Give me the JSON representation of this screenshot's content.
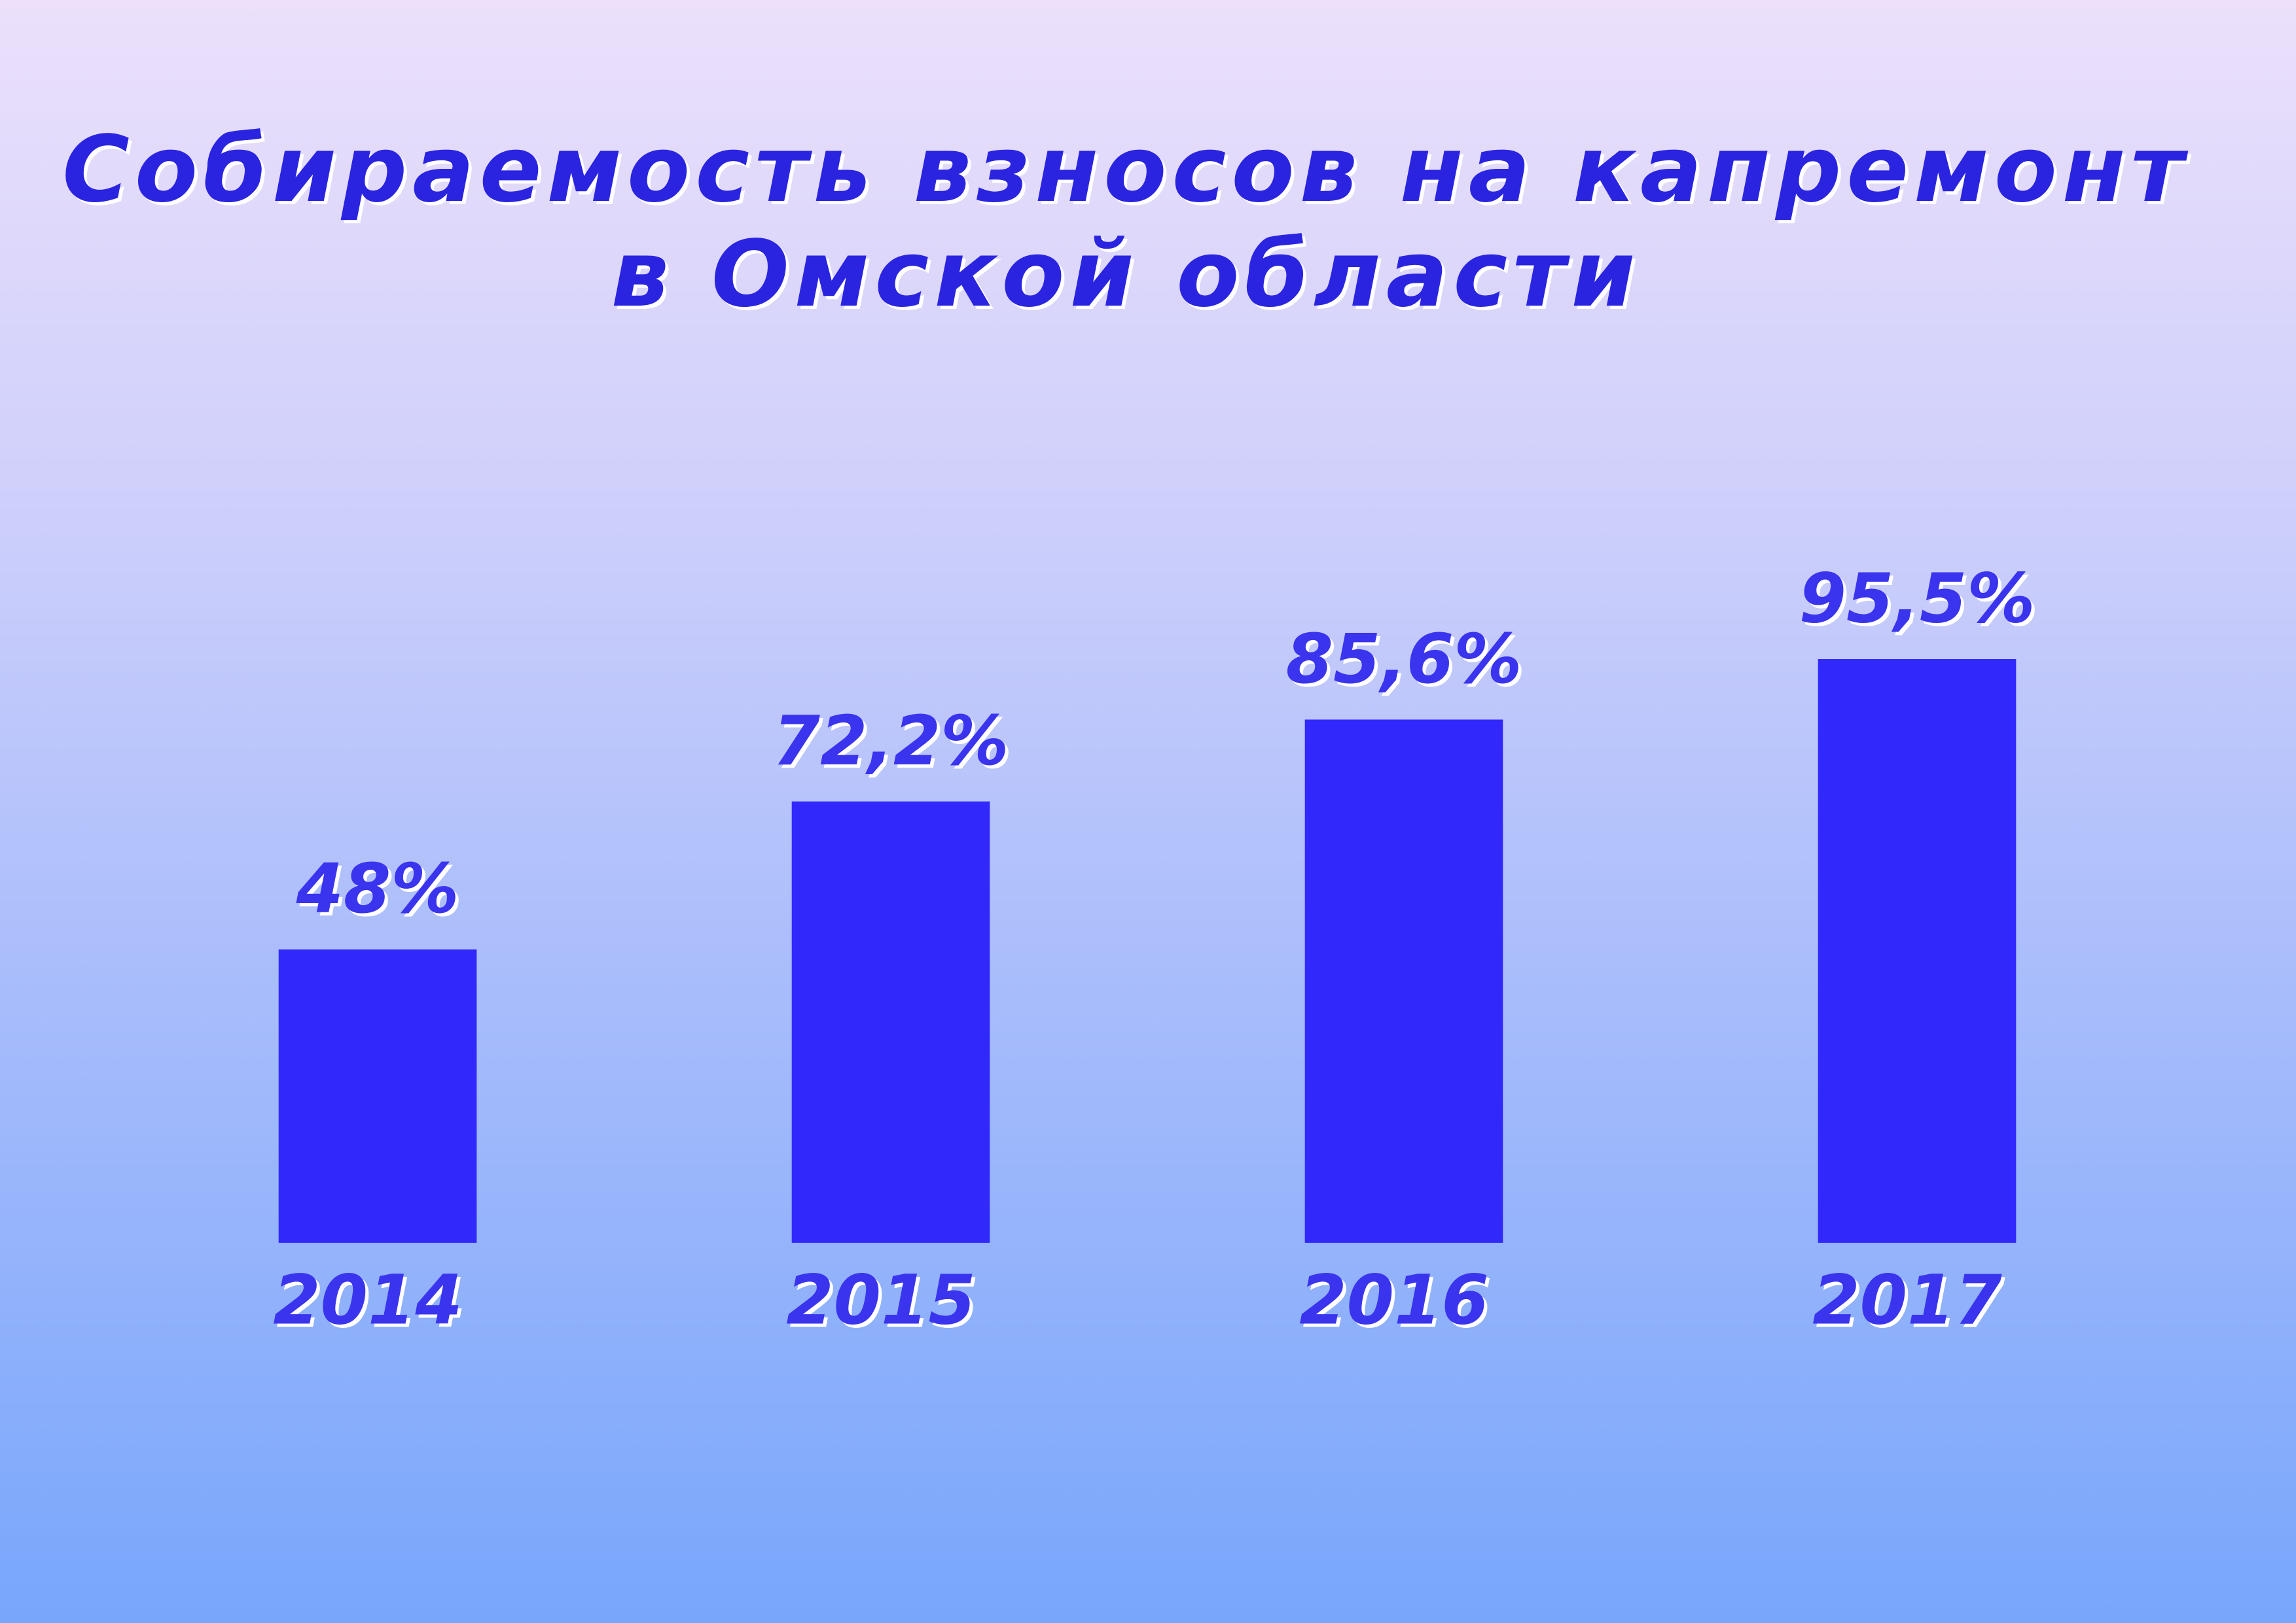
{
  "chart_data": {
    "type": "bar",
    "title": "Собираемость взносов на капремонт\nв Омской области",
    "categories": [
      "2014",
      "2015",
      "2016",
      "2017"
    ],
    "values": [
      48,
      72.2,
      85.6,
      95.5
    ],
    "value_labels": [
      "48%",
      "72,2%",
      "85,6%",
      "95,5%"
    ],
    "color": "#3129fc"
  }
}
